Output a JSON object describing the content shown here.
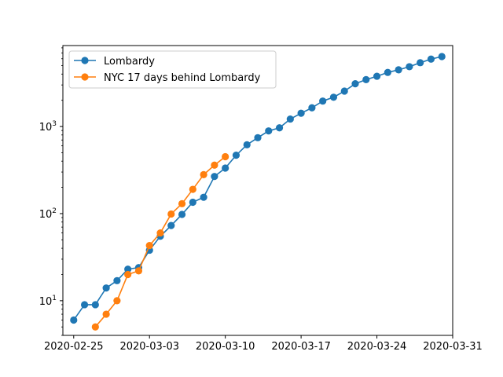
{
  "chart_data": {
    "type": "line",
    "yscale": "log",
    "ylim": [
      4,
      8500
    ],
    "xlim": [
      "2020-02-24",
      "2020-03-31"
    ],
    "x_ticks": [
      "2020-02-25",
      "2020-03-03",
      "2020-03-10",
      "2020-03-17",
      "2020-03-24",
      "2020-03-31"
    ],
    "y_ticks": [
      {
        "value": 10,
        "base": "10",
        "exp": "1"
      },
      {
        "value": 100,
        "base": "10",
        "exp": "2"
      },
      {
        "value": 1000,
        "base": "10",
        "exp": "3"
      }
    ],
    "grid": false,
    "legend_position": "upper-left",
    "series": [
      {
        "name": "Lombardy",
        "color": "#1f77b4",
        "points": [
          {
            "x": "2020-02-25",
            "y": 6
          },
          {
            "x": "2020-02-26",
            "y": 9
          },
          {
            "x": "2020-02-27",
            "y": 9
          },
          {
            "x": "2020-02-28",
            "y": 14
          },
          {
            "x": "2020-02-29",
            "y": 17
          },
          {
            "x": "2020-03-01",
            "y": 23
          },
          {
            "x": "2020-03-02",
            "y": 24
          },
          {
            "x": "2020-03-03",
            "y": 38
          },
          {
            "x": "2020-03-04",
            "y": 55
          },
          {
            "x": "2020-03-05",
            "y": 73
          },
          {
            "x": "2020-03-06",
            "y": 98
          },
          {
            "x": "2020-03-07",
            "y": 135
          },
          {
            "x": "2020-03-08",
            "y": 154
          },
          {
            "x": "2020-03-09",
            "y": 267
          },
          {
            "x": "2020-03-10",
            "y": 333
          },
          {
            "x": "2020-03-11",
            "y": 468
          },
          {
            "x": "2020-03-12",
            "y": 617
          },
          {
            "x": "2020-03-13",
            "y": 744
          },
          {
            "x": "2020-03-14",
            "y": 890
          },
          {
            "x": "2020-03-15",
            "y": 966
          },
          {
            "x": "2020-03-16",
            "y": 1218
          },
          {
            "x": "2020-03-17",
            "y": 1420
          },
          {
            "x": "2020-03-18",
            "y": 1640
          },
          {
            "x": "2020-03-19",
            "y": 1959
          },
          {
            "x": "2020-03-20",
            "y": 2168
          },
          {
            "x": "2020-03-21",
            "y": 2549
          },
          {
            "x": "2020-03-22",
            "y": 3095
          },
          {
            "x": "2020-03-23",
            "y": 3456
          },
          {
            "x": "2020-03-24",
            "y": 3776
          },
          {
            "x": "2020-03-25",
            "y": 4178
          },
          {
            "x": "2020-03-26",
            "y": 4474
          },
          {
            "x": "2020-03-27",
            "y": 4861
          },
          {
            "x": "2020-03-28",
            "y": 5402
          },
          {
            "x": "2020-03-29",
            "y": 5944
          },
          {
            "x": "2020-03-30",
            "y": 6360
          }
        ]
      },
      {
        "name": "NYC 17 days behind Lombardy",
        "color": "#ff7f0e",
        "points": [
          {
            "x": "2020-02-27",
            "y": 5
          },
          {
            "x": "2020-02-28",
            "y": 7
          },
          {
            "x": "2020-02-29",
            "y": 10
          },
          {
            "x": "2020-03-01",
            "y": 20
          },
          {
            "x": "2020-03-02",
            "y": 22
          },
          {
            "x": "2020-03-03",
            "y": 43
          },
          {
            "x": "2020-03-04",
            "y": 60
          },
          {
            "x": "2020-03-05",
            "y": 99
          },
          {
            "x": "2020-03-06",
            "y": 130
          },
          {
            "x": "2020-03-07",
            "y": 190
          },
          {
            "x": "2020-03-08",
            "y": 280
          },
          {
            "x": "2020-03-09",
            "y": 360
          },
          {
            "x": "2020-03-10",
            "y": 450
          }
        ]
      }
    ]
  }
}
